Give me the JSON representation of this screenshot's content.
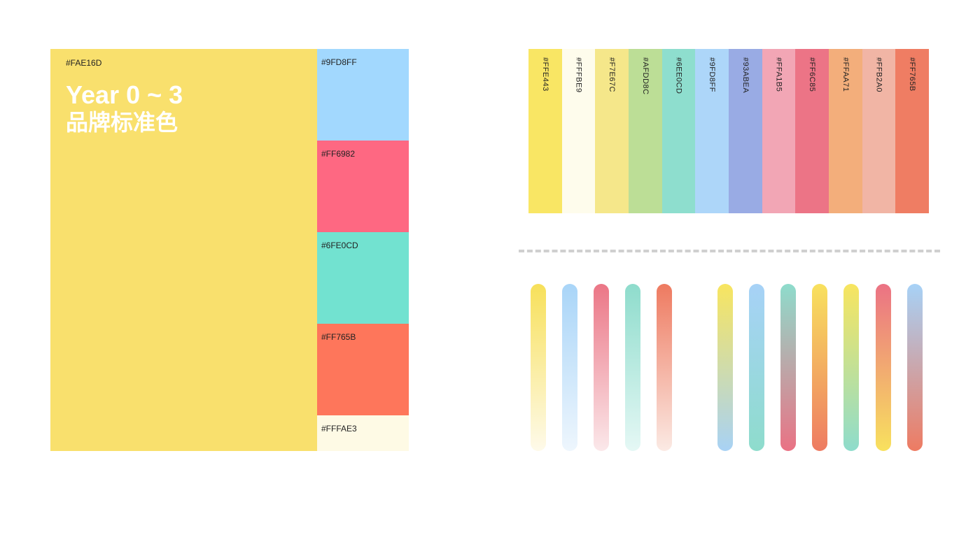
{
  "brand": {
    "main": {
      "code": "#FAE16D",
      "color": "#F9E06D"
    },
    "title_line1": "Year 0 ~ 3",
    "title_line2": "品牌标准色",
    "side": [
      {
        "code": "#9FD8FF",
        "color": "#A2D8FE"
      },
      {
        "code": "#FF6982",
        "color": "#FE6882"
      },
      {
        "code": "#6FE0CD",
        "color": "#72E2D0"
      },
      {
        "code": "#FF765B",
        "color": "#FE765B"
      },
      {
        "code": "#FFFAE3",
        "color": "#FEFAE5"
      }
    ]
  },
  "palette": [
    {
      "code": "#FFE443",
      "color": "#F9E664"
    },
    {
      "code": "#FFFBE9",
      "color": "#FEFCEC"
    },
    {
      "code": "#F7E67C",
      "color": "#F5E78A"
    },
    {
      "code": "#AFDD8C",
      "color": "#BCDE96"
    },
    {
      "code": "#6EE0CD",
      "color": "#8EDECE"
    },
    {
      "code": "#9FD8FF",
      "color": "#ADD6F9"
    },
    {
      "code": "#93ABEA",
      "color": "#99ABE4"
    },
    {
      "code": "#FFA1B5",
      "color": "#F2A6B5"
    },
    {
      "code": "#FF6C85",
      "color": "#EC7486"
    },
    {
      "code": "#FFAA71",
      "color": "#F3AE7B"
    },
    {
      "code": "#FFB2A0",
      "color": "#F1B5A5"
    },
    {
      "code": "#FF765B",
      "color": "#EF7D63"
    }
  ],
  "gradients": [
    {
      "top": "#F7E05A",
      "bottom": "#FEFAEA"
    },
    {
      "top": "#A9D5F8",
      "bottom": "#EEF6FD"
    },
    {
      "top": "#EB7686",
      "bottom": "#FBE8EA"
    },
    {
      "top": "#8EDCCC",
      "bottom": "#E5F8F5"
    },
    {
      "top": "#EE7A60",
      "bottom": "#FBEAE4"
    },
    {
      "top": "#F8E55F",
      "bottom": "#A8D2F5"
    },
    {
      "top": "#A7D2F7",
      "bottom": "#8EDCCC"
    },
    {
      "top": "#8EDCCC",
      "bottom": "#EA7284"
    },
    {
      "top": "#F8E15E",
      "bottom": "#EE7B62"
    },
    {
      "top": "#F8E55F",
      "bottom": "#8EDCCC"
    },
    {
      "top": "#EB7284",
      "bottom": "#F8E15E"
    },
    {
      "top": "#A7D2F7",
      "bottom": "#EE7B62"
    }
  ]
}
